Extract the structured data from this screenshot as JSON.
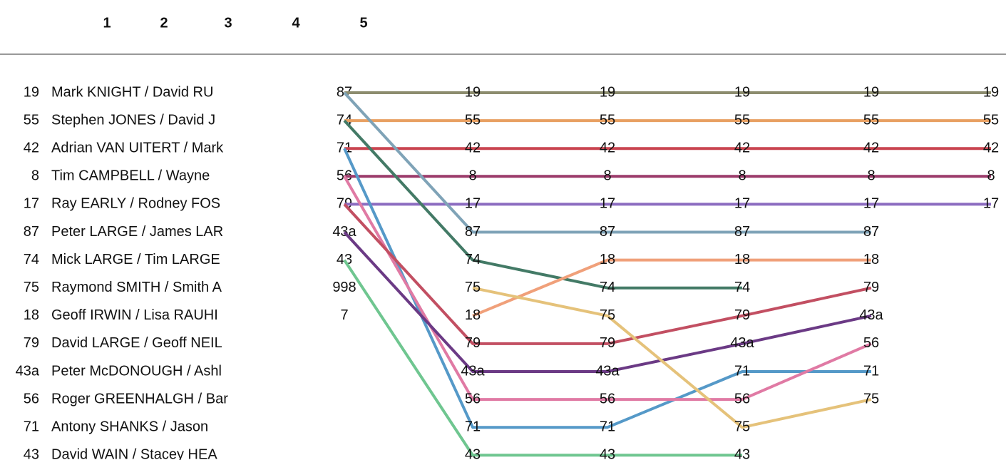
{
  "chart_data": {
    "type": "line",
    "title": "",
    "xlabel": "",
    "ylabel": "",
    "header_labels": [
      "1",
      "2",
      "3",
      "4",
      "5"
    ],
    "entries": [
      {
        "number": "19",
        "crew": "Mark KNIGHT / David  RU"
      },
      {
        "number": "55",
        "crew": "Stephen JONES / David  J"
      },
      {
        "number": "42",
        "crew": "Adrian VAN UITERT / Mark"
      },
      {
        "number": "8",
        "crew": "Tim CAMPBELL / Wayne"
      },
      {
        "number": "17",
        "crew": "Ray EARLY / Rodney  FOS"
      },
      {
        "number": "87",
        "crew": "Peter LARGE / James  LAR"
      },
      {
        "number": "74",
        "crew": "Mick LARGE / Tim  LARGE"
      },
      {
        "number": "75",
        "crew": "Raymond SMITH / Smith  A"
      },
      {
        "number": "18",
        "crew": "Geoff IRWIN / Lisa  RAUHI"
      },
      {
        "number": "79",
        "crew": "David LARGE / Geoff  NEIL"
      },
      {
        "number": "43a",
        "crew": "Peter McDONOUGH / Ashl"
      },
      {
        "number": "56",
        "crew": "Roger GREENHALGH / Bar"
      },
      {
        "number": "71",
        "crew": "Antony SHANKS / Jason"
      },
      {
        "number": "43",
        "crew": "David WAIN / Stacey  HEA"
      }
    ],
    "stage0_column": [
      "87",
      "74",
      "71",
      "56",
      "79",
      "43a",
      "43",
      "998",
      "7"
    ],
    "series": [
      {
        "name": "19",
        "color": "#8c8c6e",
        "start_rank": 1,
        "positions": [
          1,
          1,
          1,
          1,
          1
        ]
      },
      {
        "name": "55",
        "color": "#e8a062",
        "start_rank": 2,
        "positions": [
          2,
          2,
          2,
          2,
          2
        ]
      },
      {
        "name": "42",
        "color": "#c9434f",
        "start_rank": 3,
        "positions": [
          3,
          3,
          3,
          3,
          3
        ]
      },
      {
        "name": "8",
        "color": "#9b3a6a",
        "start_rank": 4,
        "positions": [
          4,
          4,
          4,
          4,
          4
        ]
      },
      {
        "name": "17",
        "color": "#8c6cc0",
        "start_rank": 5,
        "positions": [
          5,
          5,
          5,
          5,
          5
        ]
      },
      {
        "name": "87",
        "color": "#7fa3b7",
        "start_rank": 1,
        "positions": [
          6,
          6,
          6,
          6
        ]
      },
      {
        "name": "74",
        "color": "#437a66",
        "start_rank": 2,
        "positions": [
          7,
          8,
          8
        ]
      },
      {
        "name": "71",
        "color": "#5599c8",
        "start_rank": 3,
        "positions": [
          13,
          13,
          11,
          11
        ]
      },
      {
        "name": "56",
        "color": "#e07aa4",
        "start_rank": 4,
        "positions": [
          12,
          12,
          12,
          10
        ]
      },
      {
        "name": "79",
        "color": "#c24f62",
        "start_rank": 5,
        "positions": [
          10,
          10,
          9,
          8
        ]
      },
      {
        "name": "43a",
        "color": "#6b3a85",
        "start_rank": 6,
        "positions": [
          11,
          11,
          10,
          9
        ]
      },
      {
        "name": "43",
        "color": "#6fc690",
        "start_rank": 7,
        "positions": [
          14,
          14,
          14
        ]
      },
      {
        "name": "18",
        "color": "#f0a07a",
        "start_rank": null,
        "positions": [
          9,
          7,
          7,
          7
        ]
      },
      {
        "name": "75",
        "color": "#e5c27a",
        "start_rank": null,
        "positions": [
          8,
          9,
          13,
          12
        ]
      }
    ]
  }
}
